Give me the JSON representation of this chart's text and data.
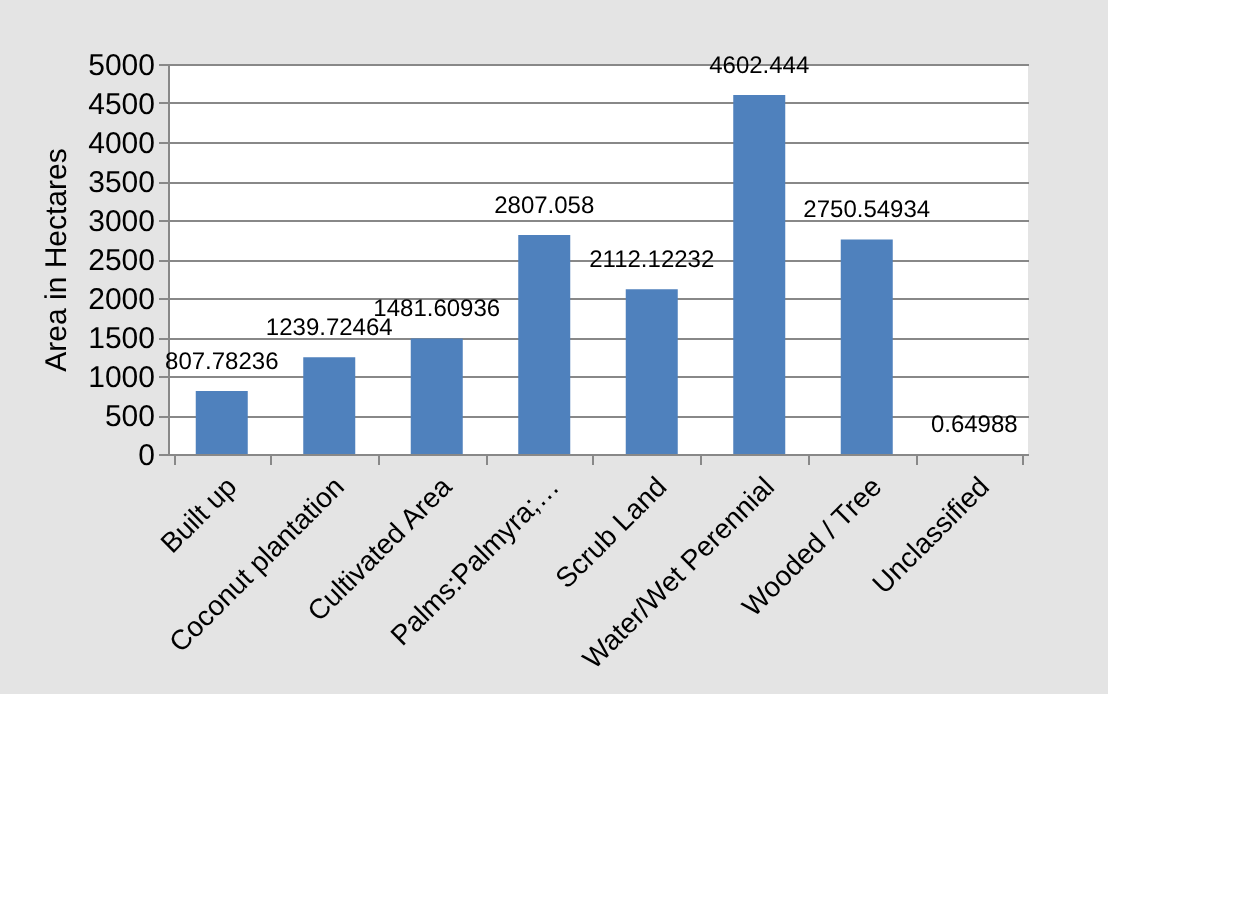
{
  "chart_data": {
    "type": "bar",
    "ylabel": "Area in Hectares",
    "categories": [
      "Built up",
      "Coconut plantation",
      "Cultivated Area",
      "Palms:Palmyra;…",
      "Scrub Land",
      "Water/Wet Perennial",
      "Wooded / Tree",
      "Unclassified"
    ],
    "values": [
      807.78236,
      1239.72464,
      1481.60936,
      2807.058,
      2112.12232,
      4602.444,
      2750.54934,
      0.64988
    ],
    "color": "#4f81bd",
    "ylim": [
      0,
      5000
    ],
    "yticks": [
      0,
      500,
      1000,
      1500,
      2000,
      2500,
      3000,
      3500,
      4000,
      4500,
      5000
    ],
    "grid": "y",
    "data_labels": true
  }
}
